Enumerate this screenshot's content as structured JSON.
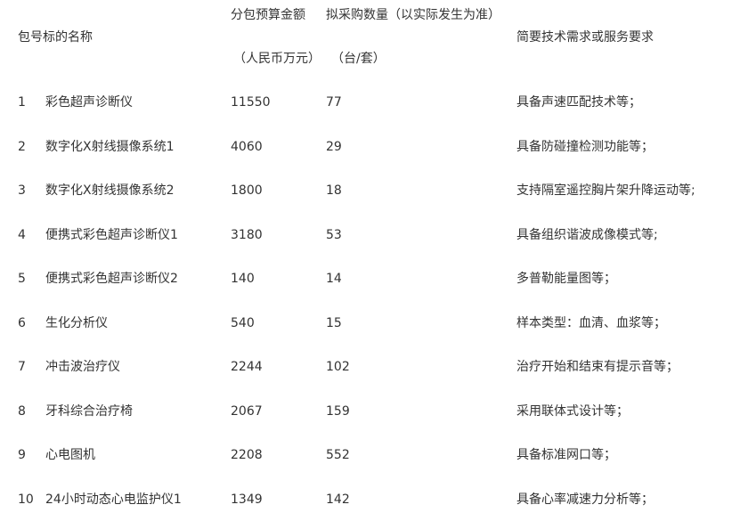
{
  "header": {
    "name": "包号标的名称",
    "budget_line1": "分包预算金额",
    "budget_line2": "（人民币万元）",
    "qty_line1": "拟采购数量（以实际发生为准）",
    "qty_line2": "（台/套）",
    "requirement": "简要技术需求或服务要求"
  },
  "rows": [
    {
      "num": "1",
      "name": "彩色超声诊断仪",
      "budget": "11550",
      "qty": "77",
      "req": "具备声速匹配技术等；"
    },
    {
      "num": "2",
      "name": "数字化X射线摄像系统1",
      "budget": "4060",
      "qty": "29",
      "req": "具备防碰撞检测功能等；"
    },
    {
      "num": "3",
      "name": "数字化X射线摄像系统2",
      "budget": "1800",
      "qty": "18",
      "req": "支持隔室遥控胸片架升降运动等;"
    },
    {
      "num": "4",
      "name": "便携式彩色超声诊断仪1",
      "budget": "3180",
      "qty": "53",
      "req": "具备组织谐波成像模式等;"
    },
    {
      "num": "5",
      "name": "便携式彩色超声诊断仪2",
      "budget": "140",
      "qty": "14",
      "req": "多普勒能量图等；"
    },
    {
      "num": "6",
      "name": "生化分析仪",
      "budget": "540",
      "qty": "15",
      "req": "样本类型：血清、血浆等；"
    },
    {
      "num": "7",
      "name": "冲击波治疗仪",
      "budget": "2244",
      "qty": "102",
      "req": "治疗开始和结束有提示音等；"
    },
    {
      "num": "8",
      "name": "牙科综合治疗椅",
      "budget": "2067",
      "qty": "159",
      "req": "采用联体式设计等；"
    },
    {
      "num": "9",
      "name": "心电图机",
      "budget": "2208",
      "qty": "552",
      "req": "具备标准网口等；"
    },
    {
      "num": "10",
      "name": "24小时动态心电监护仪1",
      "budget": "1349",
      "qty": "142",
      "req": "具备心率减速力分析等；"
    }
  ]
}
